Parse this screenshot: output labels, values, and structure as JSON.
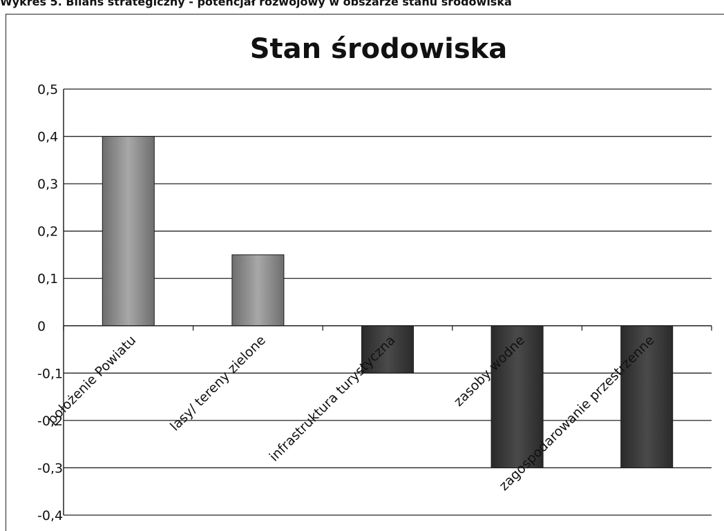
{
  "caption": "Wykres 5. Bilans strategiczny - potencjał rozwojowy w obszarze stanu środowiska",
  "chart_data": {
    "type": "bar",
    "title": "Stan środowiska",
    "xlabel": "",
    "ylabel": "",
    "categories": [
      "położenie Powiatu",
      "lasy/ tereny zielone",
      "infrastruktura turystyczna",
      "zasoby wodne",
      "zagospodarowanie przestrzenne"
    ],
    "values": [
      0.4,
      0.15,
      -0.1,
      -0.3,
      -0.3
    ],
    "ylim": [
      -0.4,
      0.5
    ],
    "yticks": [
      0.5,
      0.4,
      0.3,
      0.2,
      0.1,
      0,
      -0.1,
      -0.2,
      -0.3,
      -0.4
    ],
    "ytick_labels": [
      "0,5",
      "0,4",
      "0,3",
      "0,2",
      "0,1",
      "0",
      "-0,1",
      "-0,2",
      "-0,3",
      "-0,4"
    ],
    "grid": true,
    "legend": "none",
    "colors": {
      "positive_bar": "#8f8f8f",
      "negative_bar": "#3a3a3a",
      "axis": "#111111"
    }
  }
}
